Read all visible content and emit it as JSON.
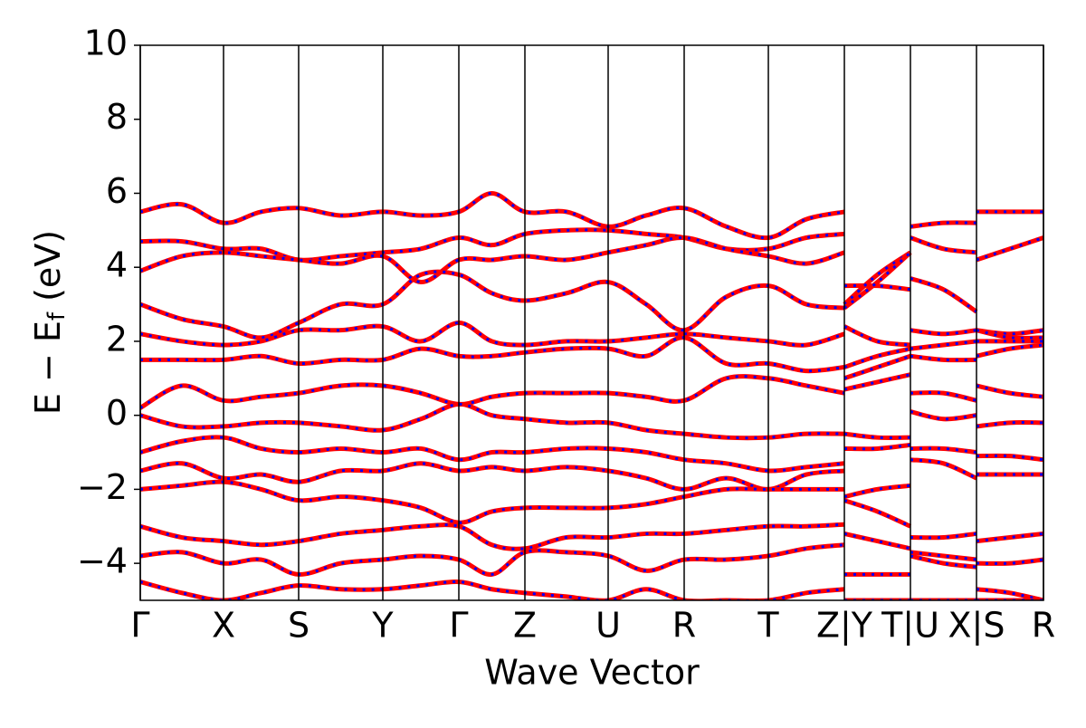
{
  "chart_data": {
    "type": "band_structure",
    "xlabel": "Wave Vector",
    "ylabel": "E − E",
    "ylabel_sub": "f",
    "ylabel_end": " (eV)",
    "line_color": "#ff0000",
    "overlay_color": "#0000ff",
    "xlim": [
      0,
      9.98
    ],
    "ylim": [
      -5,
      10
    ],
    "yticks": [
      {
        "value": -4,
        "label": "−4"
      },
      {
        "value": -2,
        "label": "−2"
      },
      0,
      2,
      4,
      6,
      8,
      10
    ],
    "xticks": [
      {
        "value": 0,
        "label": "Γ"
      },
      {
        "value": 0.92,
        "label": "X"
      },
      {
        "value": 1.75,
        "label": "S"
      },
      {
        "value": 2.68,
        "label": "Y"
      },
      {
        "value": 3.52,
        "label": "Γ"
      },
      {
        "value": 4.25,
        "label": "Z"
      },
      {
        "value": 5.17,
        "label": "U"
      },
      {
        "value": 6.01,
        "label": "R"
      },
      {
        "value": 6.94,
        "label": "T"
      },
      {
        "value": 7.78,
        "label": "Z|Y"
      },
      {
        "value": 8.51,
        "label": "T|U"
      },
      {
        "value": 9.24,
        "label": "X|S"
      },
      {
        "value": 9.98,
        "label": "R"
      }
    ],
    "x": [
      0,
      0.46,
      0.92,
      1.335,
      1.75,
      2.215,
      2.68,
      3.1,
      3.52,
      3.885,
      4.25,
      4.71,
      5.17,
      5.59,
      6.01,
      6.475,
      6.94,
      7.36,
      7.78,
      7.78,
      7.78,
      8.145,
      8.51,
      8.51,
      8.51,
      8.875,
      9.24,
      9.24,
      9.24,
      9.61,
      9.98
    ],
    "series": [
      {
        "values": [
          5.5,
          5.7,
          5.2,
          5.5,
          5.6,
          5.4,
          5.5,
          5.4,
          5.5,
          6.0,
          5.5,
          5.5,
          5.1,
          5.4,
          5.6,
          5.1,
          4.8,
          5.3,
          5.5,
          null,
          3.5,
          3.5,
          3.4,
          null,
          5.1,
          5.2,
          5.2,
          null,
          5.5,
          5.5,
          5.5
        ]
      },
      {
        "values": [
          4.7,
          4.7,
          4.5,
          4.5,
          4.2,
          4.3,
          4.4,
          4.5,
          4.8,
          4.6,
          4.9,
          5.0,
          5.0,
          4.9,
          4.8,
          4.5,
          4.5,
          4.8,
          4.9,
          null,
          3.0,
          3.8,
          4.4,
          null,
          4.8,
          4.5,
          4.4,
          null,
          4.2,
          4.5,
          4.8
        ]
      },
      {
        "values": [
          3.9,
          4.3,
          4.4,
          4.3,
          4.2,
          4.1,
          4.3,
          3.6,
          4.2,
          4.2,
          4.3,
          4.2,
          4.4,
          4.6,
          4.8,
          4.5,
          4.3,
          4.1,
          4.4,
          null,
          2.9,
          3.6,
          4.4,
          null,
          3.7,
          3.4,
          2.8,
          null,
          2.3,
          2.2,
          2.3
        ]
      },
      {
        "values": [
          3.0,
          2.6,
          2.4,
          2.1,
          2.5,
          3.0,
          3.0,
          3.8,
          3.8,
          3.3,
          3.1,
          3.3,
          3.6,
          3.0,
          2.3,
          3.2,
          3.5,
          3.0,
          2.9,
          null,
          2.4,
          2.0,
          1.9,
          null,
          2.3,
          2.2,
          2.3,
          null,
          2.3,
          2.1,
          2.1
        ]
      },
      {
        "values": [
          2.2,
          2.0,
          1.9,
          2.0,
          2.3,
          2.3,
          2.4,
          2.0,
          2.5,
          2.0,
          1.9,
          2.0,
          2.0,
          2.1,
          2.2,
          2.1,
          2.0,
          1.9,
          2.2,
          null,
          1.3,
          1.6,
          1.8,
          null,
          1.8,
          1.9,
          2.0,
          null,
          2.0,
          2.0,
          2.0
        ]
      },
      {
        "values": [
          1.5,
          1.5,
          1.5,
          1.6,
          1.4,
          1.5,
          1.5,
          1.8,
          1.6,
          1.6,
          1.7,
          1.8,
          1.8,
          1.6,
          2.1,
          1.4,
          1.4,
          1.2,
          1.3,
          null,
          1.0,
          1.3,
          1.6,
          null,
          1.6,
          1.5,
          1.5,
          null,
          1.6,
          1.8,
          1.9
        ]
      },
      {
        "values": [
          0.2,
          0.8,
          0.4,
          0.5,
          0.6,
          0.8,
          0.8,
          0.6,
          0.3,
          0.5,
          0.6,
          0.6,
          0.6,
          0.5,
          0.4,
          1.0,
          1.0,
          0.8,
          0.6,
          null,
          0.7,
          0.9,
          1.1,
          null,
          0.6,
          0.6,
          0.4,
          null,
          0.8,
          0.6,
          0.5
        ]
      },
      {
        "values": [
          0.0,
          -0.3,
          -0.3,
          -0.2,
          -0.2,
          -0.3,
          -0.4,
          -0.1,
          0.3,
          0.0,
          -0.1,
          -0.2,
          -0.2,
          -0.4,
          -0.5,
          -0.6,
          -0.6,
          -0.5,
          -0.5,
          null,
          -0.5,
          -0.6,
          -0.6,
          null,
          0.1,
          -0.1,
          0.0,
          null,
          -0.3,
          -0.2,
          -0.2
        ]
      },
      {
        "values": [
          -1.0,
          -0.7,
          -0.6,
          -0.9,
          -1.0,
          -0.9,
          -1.0,
          -0.9,
          -1.2,
          -1.0,
          -1.0,
          -0.9,
          -0.9,
          -1.0,
          -1.2,
          -1.3,
          -1.5,
          -1.4,
          -1.3,
          null,
          -0.9,
          -0.9,
          -0.8,
          null,
          -0.9,
          -0.9,
          -1.0,
          null,
          -1.1,
          -1.1,
          -1.2
        ]
      },
      {
        "values": [
          -1.5,
          -1.3,
          -1.7,
          -1.6,
          -1.8,
          -1.5,
          -1.5,
          -1.3,
          -1.5,
          -1.4,
          -1.5,
          -1.4,
          -1.5,
          -1.7,
          -2.0,
          -1.7,
          -2.0,
          -1.6,
          -1.5,
          null,
          -2.2,
          -2.0,
          -1.9,
          null,
          -1.2,
          -1.3,
          -1.7,
          null,
          -1.6,
          -1.6,
          -1.6
        ]
      },
      {
        "values": [
          -2.0,
          -1.9,
          -1.8,
          -2.0,
          -2.3,
          -2.2,
          -2.3,
          -2.5,
          -2.9,
          -2.6,
          -2.5,
          -2.5,
          -2.5,
          -2.4,
          -2.2,
          -2.0,
          -2.0,
          -2.0,
          -2.0,
          null,
          -2.3,
          -2.6,
          -3.0,
          null,
          -3.3,
          -3.3,
          -3.2,
          null,
          -3.4,
          -3.3,
          -3.2
        ]
      },
      {
        "values": [
          -3.0,
          -3.3,
          -3.4,
          -3.5,
          -3.4,
          -3.2,
          -3.1,
          -3.0,
          -3.0,
          -3.5,
          -3.6,
          -3.3,
          -3.3,
          -3.2,
          -3.2,
          -3.1,
          -3.0,
          -3.0,
          -2.95,
          null,
          -3.2,
          -3.4,
          -3.6,
          null,
          -3.7,
          -3.8,
          -3.9,
          null,
          -4.0,
          -4.0,
          -3.9
        ]
      },
      {
        "values": [
          -3.8,
          -3.7,
          -4.0,
          -3.9,
          -4.3,
          -4.0,
          -3.9,
          -3.8,
          -3.9,
          -4.3,
          -3.7,
          -3.7,
          -3.8,
          -4.2,
          -3.9,
          -3.9,
          -3.8,
          -3.6,
          -3.5,
          null,
          -4.3,
          -4.3,
          -4.3,
          null,
          -3.8,
          -4.0,
          -4.1,
          null,
          -4.7,
          -4.8,
          -5.0
        ]
      },
      {
        "values": [
          -4.5,
          -4.8,
          -5.0,
          -4.8,
          -4.6,
          -4.7,
          -4.7,
          -4.6,
          -4.5,
          -4.7,
          -4.8,
          -4.9,
          -5.0,
          -4.7,
          -5.0,
          -5.0,
          -5.0,
          -4.8,
          -4.7,
          null,
          -5.0,
          -5.0,
          -5.0,
          null,
          -5.0,
          -5.0,
          -5.0,
          null,
          -5.0,
          -5.0,
          -5.0
        ]
      }
    ]
  }
}
